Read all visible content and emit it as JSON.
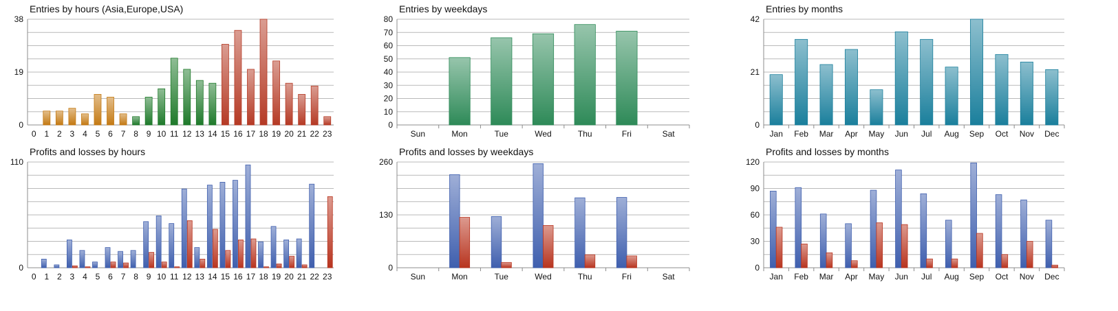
{
  "chart_data": [
    {
      "id": "entries_hours",
      "type": "bar",
      "title": "Entries by hours (Asia,Europe,USA)",
      "categories": [
        "0",
        "1",
        "2",
        "3",
        "4",
        "5",
        "6",
        "7",
        "8",
        "9",
        "10",
        "11",
        "12",
        "13",
        "14",
        "15",
        "16",
        "17",
        "18",
        "19",
        "20",
        "21",
        "22",
        "23"
      ],
      "values": [
        0,
        5,
        5,
        6,
        4,
        11,
        10,
        4,
        3,
        10,
        13,
        24,
        20,
        16,
        15,
        29,
        34,
        20,
        38,
        23,
        15,
        11,
        14,
        3
      ],
      "bar_colors": [
        "#c47a14",
        "#c47a14",
        "#c47a14",
        "#c47a14",
        "#c47a14",
        "#c47a14",
        "#c47a14",
        "#c47a14",
        "#1f7a2b",
        "#1f7a2b",
        "#1f7a2b",
        "#1f7a2b",
        "#1f7a2b",
        "#1f7a2b",
        "#1f7a2b",
        "#b53a25",
        "#b53a25",
        "#b53a25",
        "#b53a25",
        "#b53a25",
        "#b53a25",
        "#b53a25",
        "#b53a25",
        "#b53a25"
      ],
      "yticks": [
        0,
        19,
        38
      ],
      "ylim": [
        0,
        38
      ],
      "grid": true
    },
    {
      "id": "entries_weekdays",
      "type": "bar",
      "title": "Entries by weekdays",
      "categories": [
        "Sun",
        "Mon",
        "Tue",
        "Wed",
        "Thu",
        "Fri",
        "Sat"
      ],
      "values": [
        0,
        51,
        66,
        69,
        76,
        71,
        0
      ],
      "bar_colors": [
        "#2e8a58"
      ],
      "yticks": [
        0,
        10,
        20,
        30,
        40,
        50,
        60,
        70,
        80
      ],
      "ylim": [
        0,
        80
      ],
      "grid": true
    },
    {
      "id": "entries_months",
      "type": "bar",
      "title": "Entries by months",
      "categories": [
        "Jan",
        "Feb",
        "Mar",
        "Apr",
        "May",
        "Jun",
        "Jul",
        "Aug",
        "Sep",
        "Oct",
        "Nov",
        "Dec"
      ],
      "values": [
        20,
        34,
        24,
        30,
        14,
        37,
        34,
        23,
        42,
        28,
        25,
        22
      ],
      "bar_colors": [
        "#1a7f9c"
      ],
      "yticks": [
        0,
        21,
        42
      ],
      "ylim": [
        0,
        42
      ],
      "grid": true
    },
    {
      "id": "pl_hours",
      "type": "bar",
      "title": "Profits and losses by hours",
      "categories": [
        "0",
        "1",
        "2",
        "3",
        "4",
        "5",
        "6",
        "7",
        "8",
        "9",
        "10",
        "11",
        "12",
        "13",
        "14",
        "15",
        "16",
        "17",
        "18",
        "19",
        "20",
        "21",
        "22",
        "23"
      ],
      "series": [
        {
          "name": "Profits",
          "values": [
            0,
            9,
            3,
            29,
            18,
            6,
            21,
            17,
            18,
            48,
            54,
            46,
            82,
            21,
            86,
            89,
            91,
            107,
            27,
            43,
            29,
            30,
            87,
            0
          ],
          "color": "#3f5fae"
        },
        {
          "name": "Losses",
          "values": [
            0,
            0,
            0,
            2,
            1,
            0,
            6,
            5,
            0,
            16,
            6,
            1,
            49,
            9,
            40,
            18,
            29,
            30,
            1,
            4,
            12,
            3,
            0,
            74
          ],
          "color": "#b8341f"
        }
      ],
      "yticks": [
        0,
        110
      ],
      "ylim": [
        0,
        110
      ],
      "grid": true
    },
    {
      "id": "pl_weekdays",
      "type": "bar",
      "title": "Profits and losses by weekdays",
      "categories": [
        "Sun",
        "Mon",
        "Tue",
        "Wed",
        "Thu",
        "Fri",
        "Sat"
      ],
      "series": [
        {
          "name": "Profits",
          "values": [
            0,
            229,
            126,
            256,
            172,
            173,
            0
          ],
          "color": "#3f5fae"
        },
        {
          "name": "Losses",
          "values": [
            0,
            124,
            13,
            104,
            32,
            29,
            0
          ],
          "color": "#b8341f"
        }
      ],
      "yticks": [
        0,
        130,
        260
      ],
      "ylim": [
        0,
        260
      ],
      "grid": true
    },
    {
      "id": "pl_months",
      "type": "bar",
      "title": "Profits and losses by months",
      "categories": [
        "Jan",
        "Feb",
        "Mar",
        "Apr",
        "May",
        "Jun",
        "Jul",
        "Aug",
        "Sep",
        "Oct",
        "Nov",
        "Dec"
      ],
      "series": [
        {
          "name": "Profits",
          "values": [
            87,
            91,
            61,
            50,
            88,
            111,
            84,
            54,
            119,
            83,
            77,
            54
          ],
          "color": "#3f5fae"
        },
        {
          "name": "Losses",
          "values": [
            46,
            27,
            17,
            8,
            51,
            49,
            10,
            10,
            39,
            15,
            30,
            3
          ],
          "color": "#b8341f"
        }
      ],
      "yticks": [
        0,
        30,
        60,
        90,
        120
      ],
      "ylim": [
        0,
        120
      ],
      "grid": true
    }
  ]
}
